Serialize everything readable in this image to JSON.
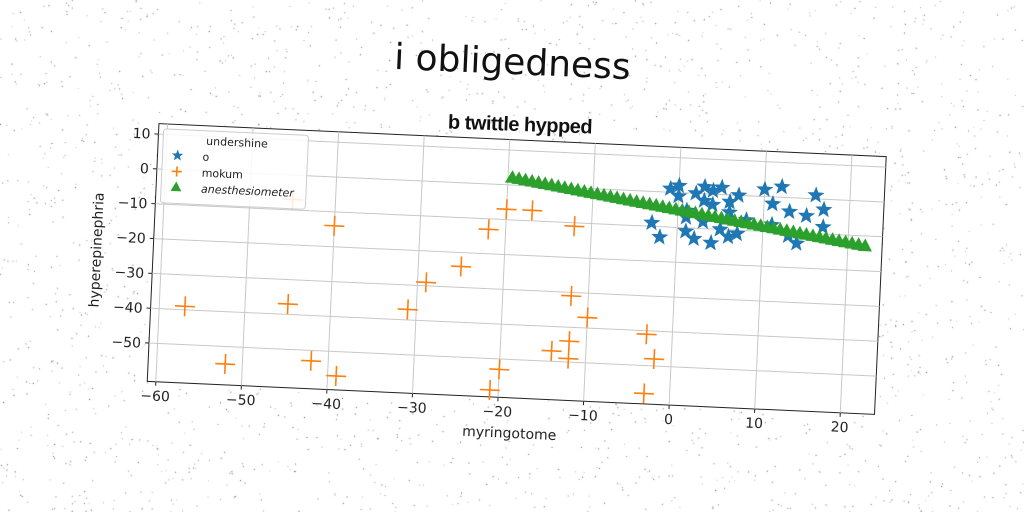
{
  "title": "i obligedness",
  "subtitle": "b twittle hypped",
  "chart_data": {
    "type": "scatter",
    "xlabel": "myringotome",
    "ylabel": "hyperepinephria",
    "xlim": [
      -61,
      24
    ],
    "ylim": [
      -61,
      13
    ],
    "xticks": [
      -60,
      -50,
      -40,
      -30,
      -20,
      -10,
      0,
      10,
      20
    ],
    "yticks": [
      -50,
      -40,
      -30,
      -20,
      -10,
      0,
      10
    ],
    "grid": true,
    "legend": {
      "title": "undershine",
      "placement": "top-left"
    },
    "series": [
      {
        "name": "o",
        "marker": "star",
        "color": "#1f77b4",
        "points": [
          [
            -3,
            -9
          ],
          [
            -2,
            -13
          ],
          [
            -1,
            1
          ],
          [
            0,
            -1
          ],
          [
            0,
            2
          ],
          [
            1,
            -5
          ],
          [
            1,
            -11
          ],
          [
            2,
            0
          ],
          [
            2,
            -13
          ],
          [
            3,
            2
          ],
          [
            3,
            -2
          ],
          [
            4,
            1
          ],
          [
            4,
            -3
          ],
          [
            5,
            2
          ],
          [
            5,
            -10
          ],
          [
            6,
            -12
          ],
          [
            6,
            -5
          ],
          [
            7,
            0
          ],
          [
            7,
            -11
          ],
          [
            8,
            -7
          ],
          [
            10,
            2
          ],
          [
            11,
            -8
          ],
          [
            11,
            -2
          ],
          [
            12,
            3
          ],
          [
            13,
            -11
          ],
          [
            13,
            -4
          ],
          [
            14,
            -13
          ],
          [
            15,
            -5
          ],
          [
            16,
            1
          ],
          [
            17,
            -3
          ],
          [
            17,
            -8
          ],
          [
            3,
            -8
          ],
          [
            4,
            -14
          ],
          [
            1,
            -7
          ],
          [
            6,
            -2
          ]
        ]
      },
      {
        "name": "mokum",
        "marker": "plus",
        "color": "#ff7f0e",
        "points": [
          [
            -57,
            -39
          ],
          [
            -52,
            -55
          ],
          [
            -45,
            -37
          ],
          [
            -45,
            -7
          ],
          [
            -42,
            -53
          ],
          [
            -40,
            -14
          ],
          [
            -39,
            -57
          ],
          [
            -31,
            -37
          ],
          [
            -29,
            -29
          ],
          [
            -25,
            -24
          ],
          [
            -22,
            -13
          ],
          [
            -21,
            -59
          ],
          [
            -20,
            -7
          ],
          [
            -20,
            -53
          ],
          [
            -17,
            -7
          ],
          [
            -14,
            -47
          ],
          [
            -12,
            -31
          ],
          [
            -12,
            -11
          ],
          [
            -12,
            -44
          ],
          [
            -12,
            -49
          ],
          [
            -10,
            -37
          ],
          [
            -3,
            -41
          ],
          [
            -3,
            -58
          ],
          [
            -2,
            -48
          ]
        ]
      },
      {
        "name": "anesthesiometer",
        "marker": "triangle",
        "color": "#2ca02c",
        "line": {
          "x_from": -19.5,
          "x_to": 22,
          "y_from": 2,
          "y_to": -13,
          "n": 55
        }
      }
    ]
  }
}
